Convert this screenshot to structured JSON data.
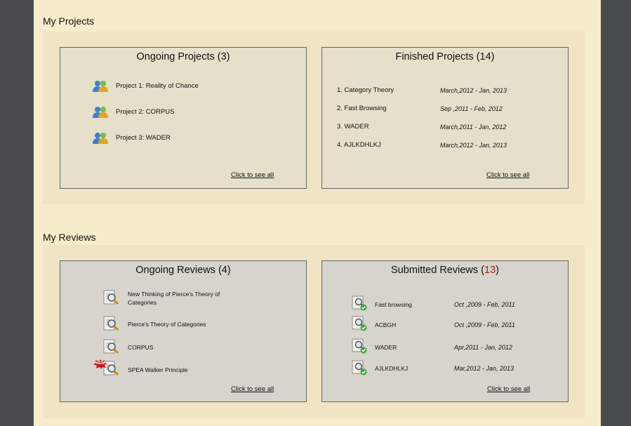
{
  "projects_section": {
    "title": "My Projects",
    "ongoing": {
      "title": "Ongoing Projects",
      "count": "(3)",
      "items": [
        "Project 1: Reality of Chance",
        "Project 2: CORPUS",
        "Project 3: WADER"
      ],
      "see_all": "Click to see all"
    },
    "finished": {
      "title": "Finished Projects",
      "count": "(14)",
      "items": [
        {
          "name": "1. Category Theory",
          "dates": "March,2012 - Jan, 2013"
        },
        {
          "name": "2. Fast Browsing",
          "dates": "Sep ,2011 - Feb, 2012"
        },
        {
          "name": "3. WADER",
          "dates": "March,2011 - Jan, 2012"
        },
        {
          "name": "4. AJLKDHLKJ",
          "dates": "March,2012 - Jan, 2013"
        }
      ],
      "see_all": "Click to see all"
    }
  },
  "reviews_section": {
    "title": "My Reviews",
    "ongoing": {
      "title": "Ongoing Reviews",
      "count": "(4)",
      "items": [
        {
          "line1": "New Thinking  of Pierce's Theory of",
          "line2": "Categories"
        },
        {
          "line1": "Pierce's Theory of Categories",
          "line2": ""
        },
        {
          "line1": "CORPUS",
          "line2": ""
        },
        {
          "line1": "SPEA Walker Principle",
          "line2": "",
          "badge": "NEW"
        }
      ],
      "see_all": "Click to see all"
    },
    "submitted": {
      "title": "Submitted Reviews",
      "count_open": "(",
      "count": "13",
      "count_close": ")",
      "items": [
        {
          "name": "Fast browsing",
          "dates": "Oct ,2009 - Feb, 2011"
        },
        {
          "name": "ACBGH",
          "dates": "Oct ,2009 - Feb, 2011"
        },
        {
          "name": "WADER",
          "dates": "Apr,2011 - Jan, 2012"
        },
        {
          "name": "AJLKDHLKJ",
          "dates": "Mar,2012 - Jan, 2013"
        }
      ],
      "see_all": "Click to see all"
    }
  },
  "colors": {
    "background": "#474b4c",
    "page": "#f6edca",
    "band": "#f1e4c4",
    "projects_panel": "#e6e0cb",
    "reviews_panel": "#d6d4cc",
    "count_accent": "#b81c1c"
  },
  "icons": {
    "project": "people-icon",
    "review": "magnifier-document-icon",
    "submitted": "document-check-icon",
    "new_badge": "new-badge-icon"
  }
}
